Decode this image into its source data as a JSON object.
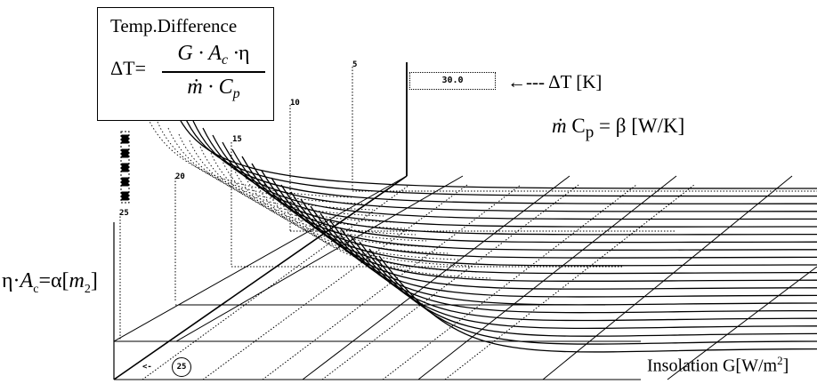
{
  "formula": {
    "title": "Temp.Difference",
    "lhs": "ΔT=",
    "numerator": "G · Ac ·η",
    "denominator": "ṁ · Cp"
  },
  "labels": {
    "delta_t": "←--- ΔT [K]",
    "beta": "ṁ Cp = β [W/K]",
    "alpha": "η·Ac=α[m2]",
    "insolation": "Insolation G[W/m2]"
  },
  "readout_value": "30.0",
  "beta_ticks": [
    "5",
    "10",
    "15",
    "20",
    "25"
  ],
  "slider_bottom": "25",
  "arrow_marker": "<-",
  "circled_value": "25",
  "colors": {
    "line": "#000000",
    "background": "#ffffff"
  }
}
